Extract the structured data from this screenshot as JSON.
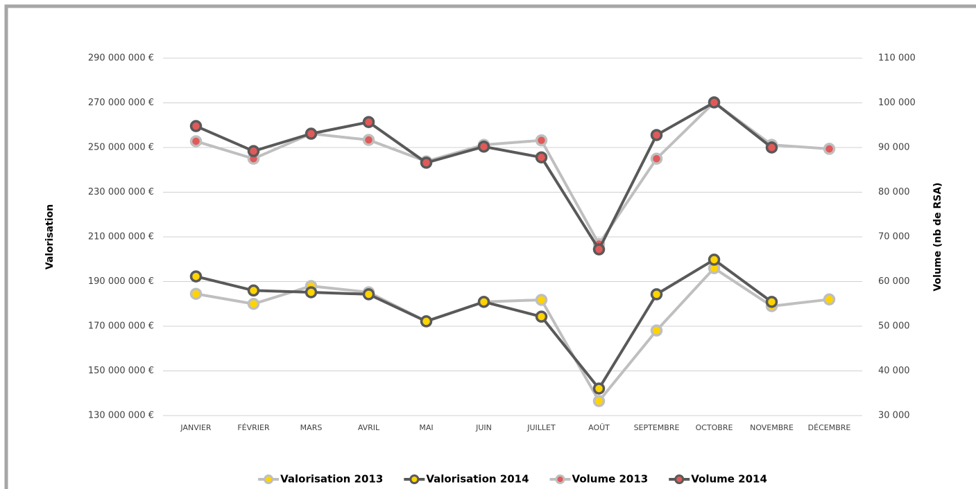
{
  "chart_data": {
    "type": "line",
    "categories": [
      "JANVIER",
      "FÉVRIER",
      "MARS",
      "AVRIL",
      "MAI",
      "JUIN",
      "JUILLET",
      "AOÛT",
      "SEPTEMBRE",
      "OCTOBRE",
      "NOVEMBRE",
      "DÉCEMBRE"
    ],
    "y_label": "Valorisation",
    "y2_label": "Volume (nb de RSA)",
    "ylim": [
      130000000,
      290000000
    ],
    "yticks": [
      {
        "value": 130000000,
        "label": "130 000 000 €"
      },
      {
        "value": 150000000,
        "label": "150 000 000 €"
      },
      {
        "value": 170000000,
        "label": "170 000 000 €"
      },
      {
        "value": 190000000,
        "label": "190 000 000 €"
      },
      {
        "value": 210000000,
        "label": "210 000 000 €"
      },
      {
        "value": 230000000,
        "label": "230 000 000 €"
      },
      {
        "value": 250000000,
        "label": "250 000 000 €"
      },
      {
        "value": 270000000,
        "label": "270 000 000 €"
      },
      {
        "value": 290000000,
        "label": "290 000 000 €"
      }
    ],
    "y2lim": [
      30000,
      110000
    ],
    "y2ticks": [
      {
        "value": 30000,
        "label": "30 000"
      },
      {
        "value": 40000,
        "label": "40 000"
      },
      {
        "value": 50000,
        "label": "50 000"
      },
      {
        "value": 60000,
        "label": "60 000"
      },
      {
        "value": 70000,
        "label": "70 000"
      },
      {
        "value": 80000,
        "label": "80 000"
      },
      {
        "value": 90000,
        "label": "90 000"
      },
      {
        "value": 100000,
        "label": "100 000"
      },
      {
        "value": 110000,
        "label": "110 000"
      }
    ],
    "grid": true,
    "legend": "bottom",
    "series": [
      {
        "name": "Valorisation 2013",
        "color": "#bfbfbf",
        "marker_color": "#ffd400",
        "values": [
          184500000,
          180000000,
          188000000,
          185200000,
          172200000,
          180900000,
          181800000,
          136500000,
          168100000,
          196000000,
          179000000,
          182000000
        ]
      },
      {
        "name": "Valorisation 2014",
        "color": "#595959",
        "marker_color": "#ffd400",
        "values": [
          192300000,
          186000000,
          185200000,
          184300000,
          172200000,
          180900000,
          174300000,
          142100000,
          184300000,
          199800000,
          180900000,
          null
        ]
      },
      {
        "name": "Volume 2013",
        "color": "#bfbfbf",
        "marker_color": "#e05a5a",
        "axis": "y2",
        "values": [
          91400,
          87500,
          93100,
          91700,
          86900,
          90600,
          91600,
          68400,
          87500,
          100100,
          90600,
          89700
        ]
      },
      {
        "name": "Volume 2014",
        "color": "#595959",
        "marker_color": "#e05a5a",
        "axis": "y2",
        "values": [
          94800,
          89200,
          93100,
          95700,
          86600,
          90200,
          87800,
          67200,
          92800,
          100100,
          90000,
          null
        ]
      }
    ]
  }
}
